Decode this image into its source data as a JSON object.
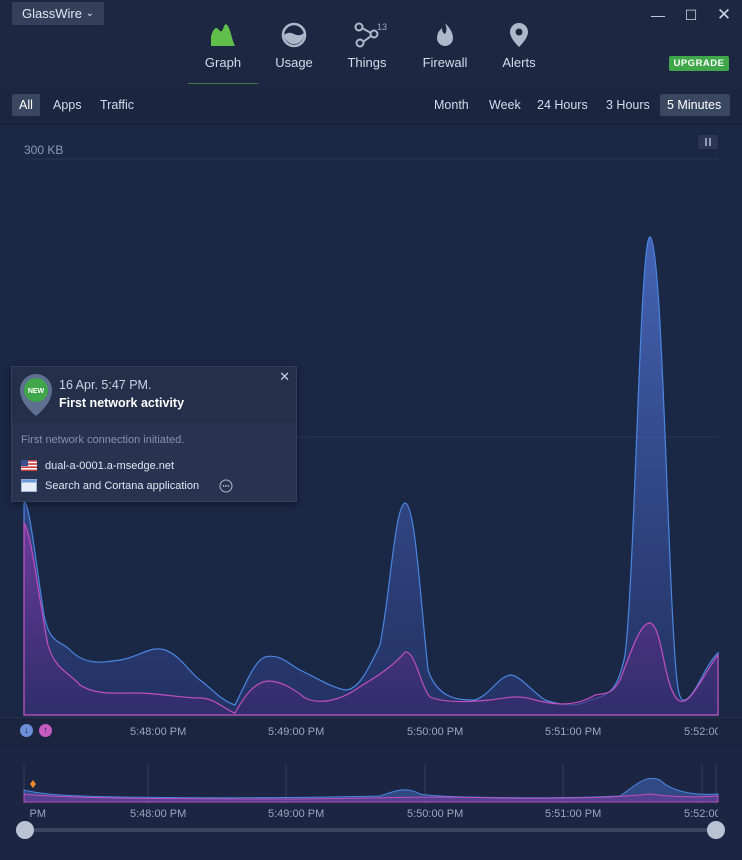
{
  "app": {
    "name": "GlassWire"
  },
  "nav": {
    "tabs": [
      {
        "label": "Graph",
        "icon": "graph-icon"
      },
      {
        "label": "Usage",
        "icon": "usage-icon"
      },
      {
        "label": "Things",
        "icon": "things-icon",
        "badge": "13"
      },
      {
        "label": "Firewall",
        "icon": "firewall-icon"
      },
      {
        "label": "Alerts",
        "icon": "alerts-icon"
      }
    ],
    "active": "Graph"
  },
  "upgrade_label": "UPGRADE",
  "filters": {
    "items": [
      "All",
      "Apps",
      "Traffic"
    ],
    "selected": "All"
  },
  "ranges": {
    "items": [
      "Month",
      "Week",
      "24 Hours",
      "3 Hours",
      "5 Minutes"
    ],
    "selected": "5 Minutes"
  },
  "graph": {
    "scale_label": "300 KB"
  },
  "time_axis": {
    "labels": [
      "5:48:00 PM",
      "5:49:00 PM",
      "5:50:00 PM",
      "5:51:00 PM",
      "5:52:00"
    ]
  },
  "overview_axis": {
    "labels": [
      "PM",
      "5:48:00 PM",
      "5:49:00 PM",
      "5:50:00 PM",
      "5:51:00 PM",
      "5:52:00"
    ]
  },
  "popup": {
    "badge": "NEW",
    "date": "16 Apr. 5:47 PM.",
    "event": "First network activity",
    "description": "First network connection initiated.",
    "host": "dual-a-0001.a-msedge.net",
    "app": "Search and Cortana application"
  },
  "colors": {
    "upload": "#4a86e0",
    "download": "#c04fbd",
    "accent": "#3fa64a"
  }
}
